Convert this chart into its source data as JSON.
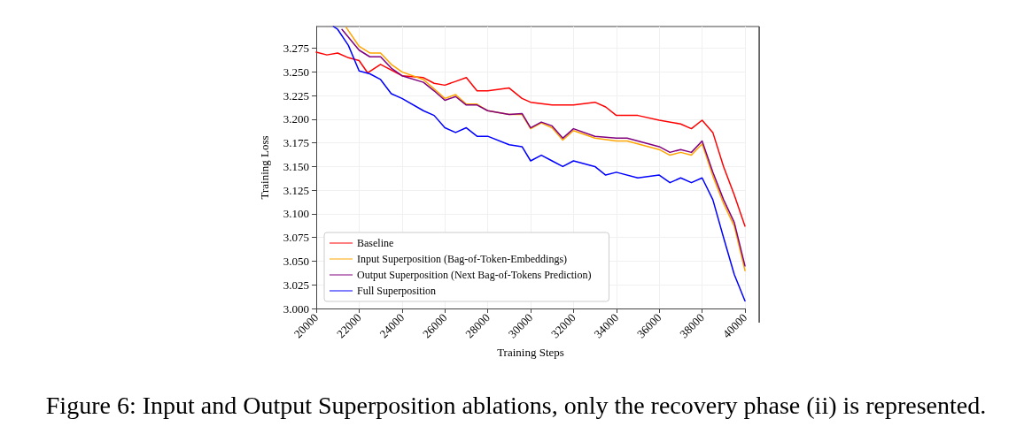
{
  "chart_data": {
    "type": "line",
    "xlabel": "Training Steps",
    "ylabel": "Training Loss",
    "annotations": [
      "Figure 6: Input and Output Superposition ablations, only the recovery phase (ii) is represented."
    ],
    "xlim": [
      20000,
      40000
    ],
    "xticks": [
      20000,
      22000,
      24000,
      26000,
      28000,
      30000,
      32000,
      34000,
      36000,
      38000,
      40000
    ],
    "ylim": [
      3.0,
      3.298
    ],
    "yticks": [
      {
        "value": 3.0,
        "label": "3.000"
      },
      {
        "value": 3.025,
        "label": "3.025"
      },
      {
        "value": 3.05,
        "label": "3.050"
      },
      {
        "value": 3.075,
        "label": "3.075"
      },
      {
        "value": 3.1,
        "label": "3.100"
      },
      {
        "value": 3.125,
        "label": "3.125"
      },
      {
        "value": 3.15,
        "label": "3.150"
      },
      {
        "value": 3.175,
        "label": "3.175"
      },
      {
        "value": 3.2,
        "label": "3.200"
      },
      {
        "value": 3.225,
        "label": "3.225"
      },
      {
        "value": 3.25,
        "label": "3.250"
      },
      {
        "value": 3.275,
        "label": "3.275"
      }
    ],
    "grid": true,
    "legend": "bottom left",
    "marker": "none",
    "line_style": "solid",
    "series": [
      {
        "name": "Baseline",
        "color": "#ff0000",
        "x": [
          20000,
          20500,
          21000,
          21500,
          22000,
          22400,
          23000,
          24000,
          25000,
          25500,
          26000,
          26500,
          27000,
          27500,
          28000,
          29000,
          29600,
          30000,
          31000,
          32000,
          33000,
          33500,
          34000,
          35000,
          36000,
          37000,
          37500,
          38000,
          38500,
          39000,
          39500,
          40000
        ],
        "values": [
          3.271,
          3.268,
          3.27,
          3.265,
          3.262,
          3.249,
          3.258,
          3.246,
          3.244,
          3.238,
          3.236,
          3.24,
          3.244,
          3.23,
          3.23,
          3.233,
          3.222,
          3.218,
          3.215,
          3.215,
          3.218,
          3.213,
          3.204,
          3.204,
          3.199,
          3.195,
          3.19,
          3.199,
          3.186,
          3.15,
          3.12,
          3.087
        ]
      },
      {
        "name": "Input Superposition (Bag-of-Token-Embeddings)",
        "color": "#ffa500",
        "x": [
          21400,
          22000,
          22500,
          23000,
          23500,
          24000,
          25000,
          25500,
          26000,
          26500,
          27000,
          27500,
          28000,
          29000,
          29600,
          30000,
          30500,
          31000,
          31500,
          32000,
          33000,
          34000,
          34500,
          35000,
          36000,
          36500,
          37000,
          37500,
          38000,
          38500,
          39000,
          39500,
          40000
        ],
        "values": [
          3.297,
          3.277,
          3.27,
          3.27,
          3.258,
          3.25,
          3.242,
          3.232,
          3.222,
          3.226,
          3.216,
          3.216,
          3.209,
          3.205,
          3.205,
          3.19,
          3.196,
          3.191,
          3.178,
          3.188,
          3.18,
          3.177,
          3.177,
          3.174,
          3.168,
          3.162,
          3.165,
          3.162,
          3.174,
          3.14,
          3.111,
          3.087,
          3.04
        ]
      },
      {
        "name": "Output Superposition (Next Bag-of-Tokens Prediction)",
        "color": "#800080",
        "x": [
          21200,
          22000,
          22500,
          23000,
          23500,
          24000,
          25000,
          25500,
          26000,
          26500,
          27000,
          27500,
          28000,
          29000,
          29600,
          30000,
          30500,
          31000,
          31500,
          32000,
          33000,
          34000,
          34500,
          35000,
          36000,
          36500,
          37000,
          37500,
          38000,
          38500,
          39000,
          39500,
          40000
        ],
        "values": [
          3.295,
          3.273,
          3.266,
          3.266,
          3.254,
          3.246,
          3.239,
          3.23,
          3.22,
          3.224,
          3.215,
          3.215,
          3.209,
          3.205,
          3.206,
          3.191,
          3.197,
          3.193,
          3.18,
          3.19,
          3.182,
          3.18,
          3.18,
          3.177,
          3.171,
          3.165,
          3.168,
          3.165,
          3.177,
          3.144,
          3.115,
          3.091,
          3.045
        ]
      },
      {
        "name": "Full Superposition",
        "color": "#0000ff",
        "x": [
          20800,
          21000,
          21500,
          22000,
          22500,
          23000,
          23500,
          24000,
          25000,
          25500,
          26000,
          26500,
          27000,
          27500,
          28000,
          29000,
          29600,
          30000,
          30500,
          31000,
          31500,
          32000,
          33000,
          33500,
          34000,
          35000,
          36000,
          36500,
          37000,
          37500,
          38000,
          38500,
          39000,
          39500,
          40000
        ],
        "values": [
          3.298,
          3.295,
          3.278,
          3.251,
          3.248,
          3.242,
          3.227,
          3.222,
          3.209,
          3.204,
          3.191,
          3.186,
          3.191,
          3.182,
          3.182,
          3.173,
          3.171,
          3.156,
          3.162,
          3.156,
          3.15,
          3.156,
          3.15,
          3.141,
          3.144,
          3.138,
          3.141,
          3.133,
          3.138,
          3.133,
          3.138,
          3.115,
          3.075,
          3.036,
          3.008
        ]
      }
    ]
  }
}
